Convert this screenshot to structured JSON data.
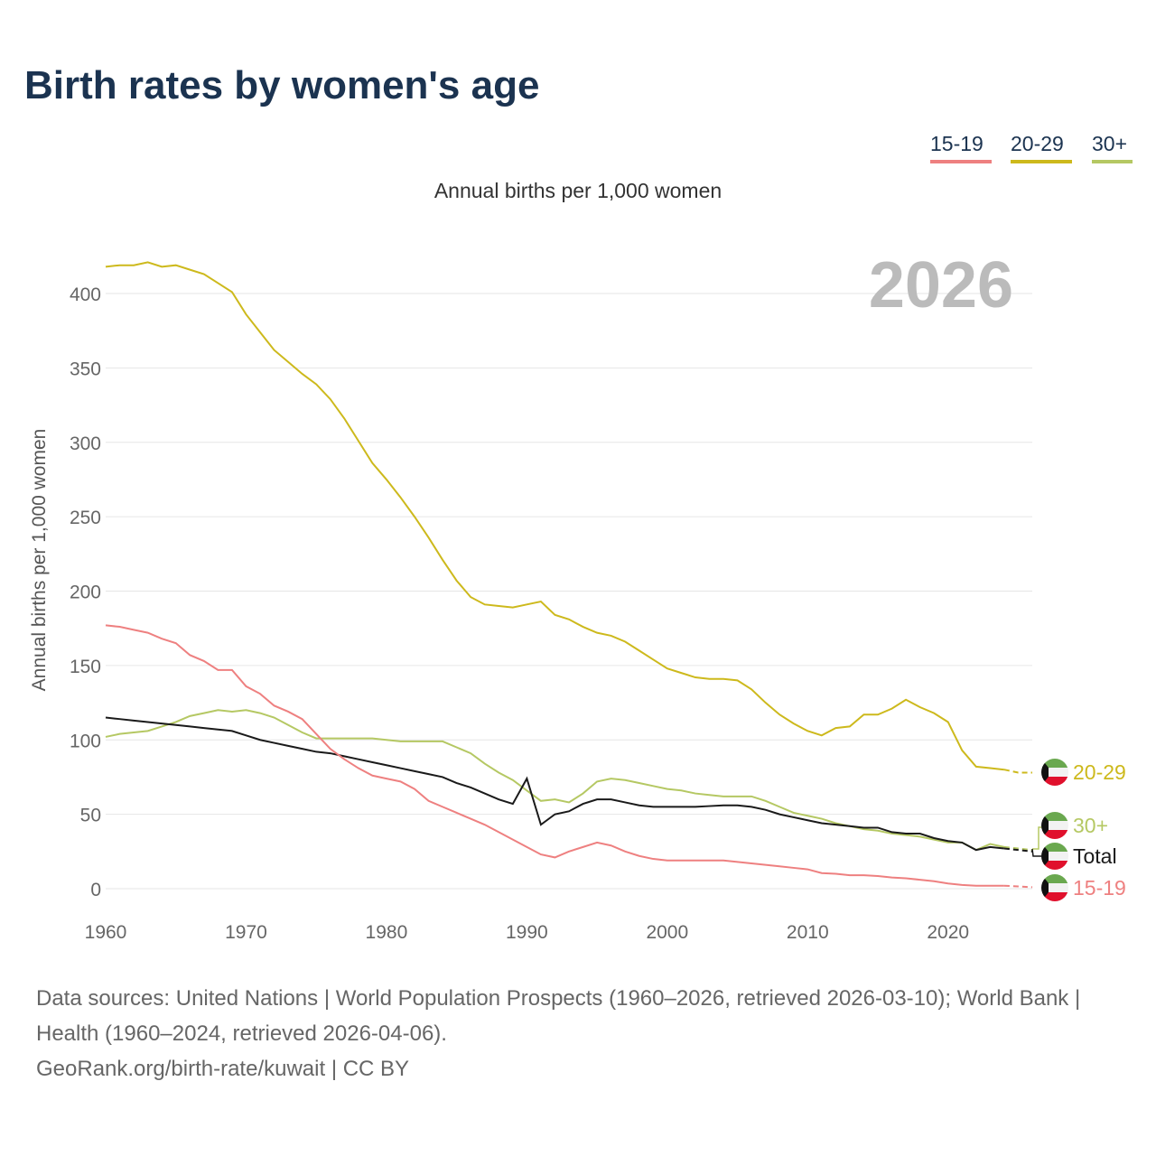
{
  "title": "Birth rates by women's age",
  "chart_data": {
    "type": "line",
    "title": "Birth rates by women's age",
    "subtitle": "Annual births per 1,000 women",
    "ylabel": "Annual births per 1,000 women",
    "xlabel": "",
    "xlim": [
      1960,
      2026
    ],
    "ylim": [
      0,
      420
    ],
    "xticks": [
      1960,
      1970,
      1980,
      1990,
      2000,
      2010,
      2020
    ],
    "yticks": [
      0,
      50,
      100,
      150,
      200,
      250,
      300,
      350,
      400
    ],
    "year_watermark": "2026",
    "legend_position": "top-right",
    "x_start": 1960,
    "series": [
      {
        "name": "20-29",
        "color": "#cdb91c",
        "values": [
          418,
          419,
          419,
          421,
          418,
          419,
          416,
          413,
          407,
          401,
          386,
          374,
          362,
          354,
          346,
          339,
          329,
          316,
          301,
          286,
          275,
          263,
          250,
          236,
          221,
          207,
          196,
          191,
          190,
          189,
          191,
          193,
          184,
          181,
          176,
          172,
          170,
          166,
          160,
          154,
          148,
          145,
          142,
          141,
          141,
          140,
          134,
          125,
          117,
          111,
          106,
          103,
          108,
          109,
          117,
          117,
          121,
          127,
          122,
          118,
          112,
          93,
          82,
          81,
          80,
          78,
          78
        ]
      },
      {
        "name": "30+",
        "color": "#b5c863",
        "values": [
          102,
          104,
          105,
          106,
          109,
          112,
          116,
          118,
          120,
          119,
          120,
          118,
          115,
          110,
          105,
          101,
          101,
          101,
          101,
          101,
          100,
          99,
          99,
          99,
          99,
          95,
          91,
          84,
          78,
          73,
          66,
          59,
          60,
          58,
          64,
          72,
          74,
          73,
          71,
          69,
          67,
          66,
          64,
          63,
          62,
          62,
          62,
          59,
          55,
          51,
          49,
          47,
          44,
          42,
          40,
          39,
          37,
          36,
          35,
          33,
          31,
          31,
          26,
          30,
          28,
          27,
          26
        ]
      },
      {
        "name": "Total",
        "color": "#1a1a1a",
        "values": [
          115,
          114,
          113,
          112,
          111,
          110,
          109,
          108,
          107,
          106,
          103,
          100,
          98,
          96,
          94,
          92,
          91,
          89,
          87,
          85,
          83,
          81,
          79,
          77,
          75,
          71,
          68,
          64,
          60,
          57,
          74,
          43,
          50,
          52,
          57,
          60,
          60,
          58,
          56,
          55,
          55,
          55,
          55,
          55.5,
          56,
          56,
          55,
          53,
          50,
          48,
          46,
          44,
          43,
          42,
          41,
          41,
          38,
          37,
          37,
          34,
          32,
          31,
          26,
          28,
          27,
          26,
          25
        ]
      },
      {
        "name": "15-19",
        "color": "#ee8080",
        "values": [
          177,
          176,
          174,
          172,
          168,
          165,
          157,
          153,
          147,
          147,
          136,
          131,
          123,
          119,
          114,
          104,
          94,
          87,
          81,
          76,
          74,
          72,
          67,
          59,
          55,
          51,
          47,
          43,
          38,
          33,
          28,
          23,
          21,
          25,
          28,
          31,
          29,
          25,
          22,
          20,
          19,
          19,
          19,
          19,
          19,
          18,
          17,
          16,
          15,
          14,
          13,
          10.5,
          10,
          9,
          9,
          8.5,
          7.5,
          7,
          6,
          5,
          3.5,
          2.5,
          2,
          2,
          2,
          1.5,
          1
        ]
      }
    ]
  },
  "legend": [
    {
      "label": "15-19",
      "color": "#ee8080"
    },
    {
      "label": "20-29",
      "color": "#cdb91c"
    },
    {
      "label": "30+",
      "color": "#b5c863"
    }
  ],
  "end_labels": [
    {
      "label": "20-29",
      "color": "#cdb91c"
    },
    {
      "label": "30+",
      "color": "#b5c863"
    },
    {
      "label": "Total",
      "color": "#1a1a1a"
    },
    {
      "label": "15-19",
      "color": "#ee8080"
    }
  ],
  "footer": {
    "line1": "Data sources: United Nations | World Population Prospects (1960–2026, retrieved 2026-03-10); World Bank | Health (1960–2024, retrieved 2026-04-06).",
    "line2": "GeoRank.org/birth-rate/kuwait | CC BY"
  }
}
